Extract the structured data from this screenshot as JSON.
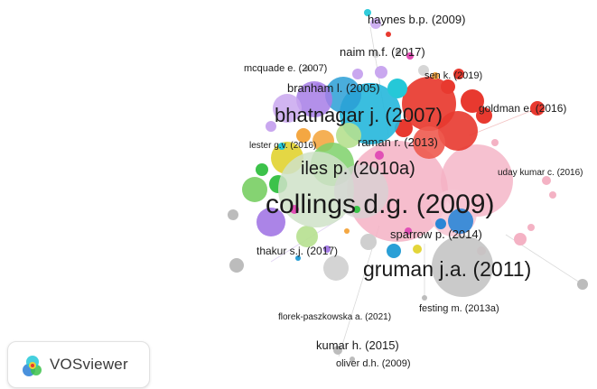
{
  "app": {
    "brand_name": "VOSviewer",
    "logo_icon": "vosviewer-heatmap-logo-icon"
  },
  "network": {
    "colors": {
      "red": "#e8392f",
      "blue": "#2a9fd6",
      "pink": "#f4b2c4",
      "green": "#7ed16a",
      "purple": "#a67de6",
      "cyan": "#25c8d8",
      "gray": "#bcbcbc",
      "yellow": "#e3d53a",
      "orange": "#f4a742",
      "magenta": "#e14fb5"
    },
    "labels": [
      {
        "id": "haynes-2009",
        "text": "haynes b.p. (2009)",
        "weight": 2
      },
      {
        "id": "naim-2017",
        "text": "naim m.f. (2017)",
        "weight": 2
      },
      {
        "id": "mcquade-2007",
        "text": "mcquade e. (2007)",
        "weight": 1
      },
      {
        "id": "sen-2019",
        "text": "sen k. (2019)",
        "weight": 1
      },
      {
        "id": "branham-2005",
        "text": "branham l. (2005)",
        "weight": 2
      },
      {
        "id": "bhatnagar-2007",
        "text": "bhatnagar j. (2007)",
        "weight": 5
      },
      {
        "id": "goldman-2016",
        "text": "goldman e. (2016)",
        "weight": 2
      },
      {
        "id": "lester-2016",
        "text": "lester g.v. (2016)",
        "weight": 1
      },
      {
        "id": "raman-2013",
        "text": "raman r. (2013)",
        "weight": 2
      },
      {
        "id": "iles-2010a",
        "text": "iles p. (2010a)",
        "weight": 4
      },
      {
        "id": "uday-kumar-2016",
        "text": "uday kumar c. (2016)",
        "weight": 1
      },
      {
        "id": "collings-2009",
        "text": "collings d.g. (2009)",
        "weight": 6
      },
      {
        "id": "sparrow-2014",
        "text": "sparrow p. (2014)",
        "weight": 2
      },
      {
        "id": "thakur-2017",
        "text": "thakur s.j. (2017)",
        "weight": 2
      },
      {
        "id": "gruman-2011",
        "text": "gruman j.a. (2011)",
        "weight": 5
      },
      {
        "id": "festing-2013a",
        "text": "festing m. (2013a)",
        "weight": 1
      },
      {
        "id": "florek-paszkowska-2021",
        "text": "florek-paszkowska a. (2021)",
        "weight": 1
      },
      {
        "id": "kumar-2015",
        "text": "kumar h. (2015)",
        "weight": 2
      },
      {
        "id": "oliver-2009",
        "text": "oliver d.h. (2009)",
        "weight": 1
      }
    ]
  }
}
